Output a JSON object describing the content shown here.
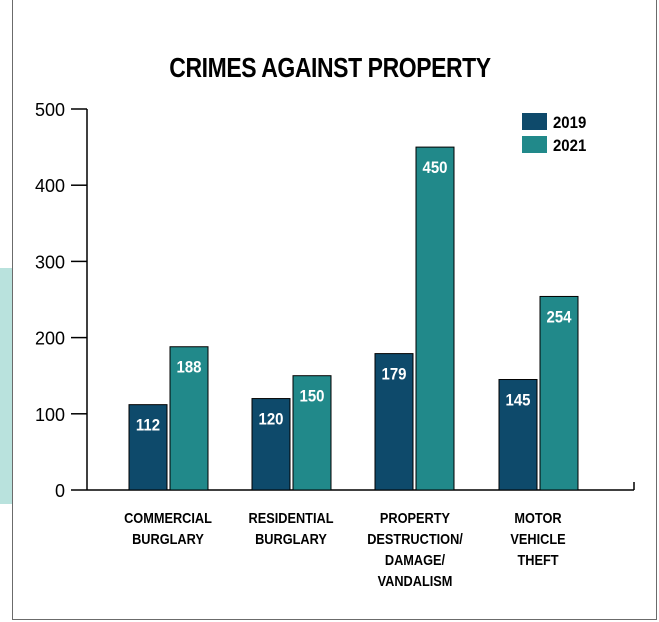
{
  "chart_data": {
    "type": "bar",
    "title": "CRIMES AGAINST PROPERTY",
    "xlabel": "",
    "ylabel": "",
    "categories": [
      "COMMERCIAL\nBURGLARY",
      "RESIDENTIAL\nBURGLARY",
      "PROPERTY\nDESTRUCTION/\nDAMAGE/\nVANDALISM",
      "MOTOR\nVEHICLE\nTHEFT"
    ],
    "series": [
      {
        "name": "2019",
        "values": [
          112,
          120,
          179,
          145
        ],
        "color": "#0e4a6b"
      },
      {
        "name": "2021",
        "values": [
          188,
          150,
          450,
          254
        ],
        "color": "#21898a"
      }
    ],
    "ylim": [
      0,
      500
    ],
    "yticks": [
      0,
      100,
      200,
      300,
      400,
      500
    ],
    "grid": false,
    "legend_position": "top-right",
    "data_label_color": "#ffffff"
  }
}
